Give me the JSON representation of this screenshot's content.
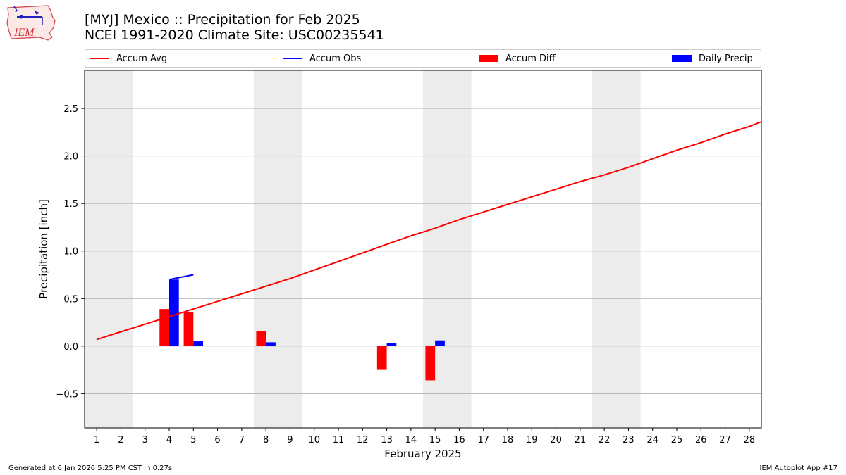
{
  "header": {
    "title": "[MYJ] Mexico :: Precipitation for Feb 2025",
    "subtitle": "NCEI 1991-2020 Climate Site: USC00235541",
    "logo_text": "IEM"
  },
  "legend": {
    "placement": "top",
    "items": [
      {
        "label": "Accum Avg",
        "kind": "line",
        "color": "#ff0000"
      },
      {
        "label": "Accum Obs",
        "kind": "line",
        "color": "#0000ff"
      },
      {
        "label": "Accum Diff",
        "kind": "patch",
        "color": "#ff0000"
      },
      {
        "label": "Daily Precip",
        "kind": "patch",
        "color": "#0000ff"
      }
    ]
  },
  "footer": {
    "left": "Generated at 6 Jan 2026 5:25 PM CST in 0.27s",
    "right": "IEM Autoplot App #17"
  },
  "chart_data": {
    "type": "bar",
    "xlabel": "February 2025",
    "ylabel": "Precipitation [inch]",
    "xlim": [
      0.5,
      28.5
    ],
    "ylim": [
      -0.86,
      2.9
    ],
    "x_ticks": [
      1,
      2,
      3,
      4,
      5,
      6,
      7,
      8,
      9,
      10,
      11,
      12,
      13,
      14,
      15,
      16,
      17,
      18,
      19,
      20,
      21,
      22,
      23,
      24,
      25,
      26,
      27,
      28
    ],
    "y_ticks": [
      -0.5,
      0.0,
      0.5,
      1.0,
      1.5,
      2.0,
      2.5
    ],
    "y_tick_labels": [
      "−0.5",
      "0.0",
      "0.5",
      "1.0",
      "1.5",
      "2.0",
      "2.5"
    ],
    "grid": "horizontal",
    "weekend_bands": [
      [
        0.5,
        2.5
      ],
      [
        7.5,
        9.5
      ],
      [
        14.5,
        16.5
      ],
      [
        21.5,
        23.5
      ]
    ],
    "series": [
      {
        "name": "Accum Avg",
        "kind": "line",
        "color": "#ff0000",
        "x": [
          1,
          2,
          3,
          4,
          5,
          6,
          7,
          8,
          9,
          10,
          11,
          12,
          13,
          14,
          15,
          16,
          17,
          18,
          19,
          20,
          21,
          22,
          23,
          24,
          25,
          26,
          27,
          28,
          28.5
        ],
        "y": [
          0.07,
          0.15,
          0.23,
          0.31,
          0.39,
          0.47,
          0.55,
          0.63,
          0.71,
          0.8,
          0.89,
          0.98,
          1.07,
          1.16,
          1.24,
          1.33,
          1.41,
          1.49,
          1.57,
          1.65,
          1.73,
          1.8,
          1.88,
          1.97,
          2.06,
          2.14,
          2.23,
          2.31,
          2.36
        ]
      },
      {
        "name": "Accum Obs",
        "kind": "line",
        "color": "#0000ff",
        "x": [
          4,
          5
        ],
        "y": [
          0.7,
          0.75
        ]
      },
      {
        "name": "Accum Diff",
        "kind": "bar",
        "color": "#ff0000",
        "x": [
          4,
          5,
          8,
          13,
          15
        ],
        "y": [
          0.39,
          0.36,
          0.16,
          -0.25,
          -0.36
        ]
      },
      {
        "name": "Daily Precip",
        "kind": "bar",
        "color": "#0000ff",
        "x": [
          4,
          5,
          8,
          13,
          15
        ],
        "y": [
          0.7,
          0.05,
          0.04,
          0.03,
          0.06
        ]
      }
    ]
  }
}
